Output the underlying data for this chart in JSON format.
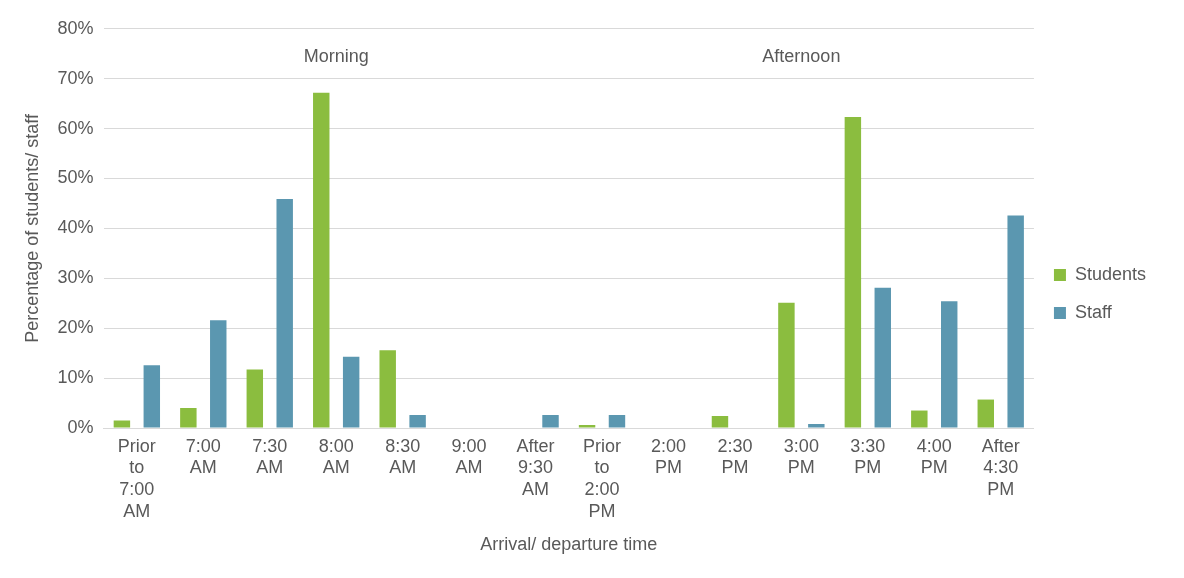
{
  "chart_data": {
    "type": "bar",
    "xlabel": "Arrival/ departure time",
    "ylabel": "Percentage of students/ staff",
    "categories": [
      "Prior to 7:00 AM",
      "7:00 AM",
      "7:30 AM",
      "8:00 AM",
      "8:30 AM",
      "9:00 AM",
      "After 9:30 AM",
      "Prior to 2:00 PM",
      "2:00 PM",
      "2:30 PM",
      "3:00 PM",
      "3:30 PM",
      "4:00 PM",
      "After 4:30 PM"
    ],
    "series": [
      {
        "name": "Students",
        "color": "#8bbd3f",
        "values": [
          1.5,
          4,
          11.7,
          67.2,
          15.6,
          0,
          0,
          0.6,
          0,
          2.4,
          25.1,
          62.3,
          3.5,
          5.7
        ]
      },
      {
        "name": "Staff",
        "color": "#5b97b0",
        "values": [
          12.6,
          21.6,
          45.9,
          14.3,
          2.6,
          0,
          2.6,
          2.6,
          0,
          0,
          0.8,
          28.1,
          25.4,
          42.6
        ]
      }
    ],
    "ylim": [
      0,
      80
    ],
    "yticks": [
      {
        "value": 0,
        "label": "0%"
      },
      {
        "value": 10,
        "label": "10%"
      },
      {
        "value": 20,
        "label": "20%"
      },
      {
        "value": 30,
        "label": "30%"
      },
      {
        "value": 40,
        "label": "40%"
      },
      {
        "value": 50,
        "label": "50%"
      },
      {
        "value": 60,
        "label": "60%"
      },
      {
        "value": 70,
        "label": "70%"
      },
      {
        "value": 80,
        "label": "80%"
      }
    ],
    "annotations": [
      "Morning",
      "Afternoon"
    ],
    "grid": "y",
    "legend": "right"
  }
}
